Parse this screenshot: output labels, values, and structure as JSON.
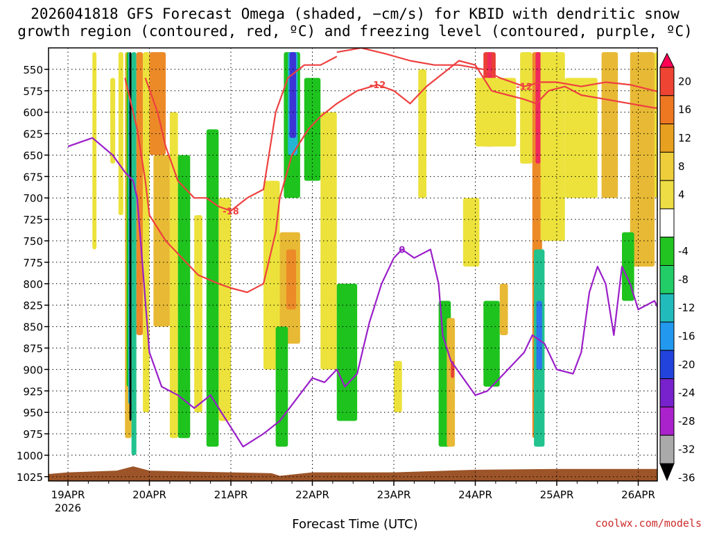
{
  "title_line1": "2026041818 GFS Forecast Omega (shaded, −cm/s) for KBID with dendritic snow",
  "title_line2": "growth region (contoured, red, ºC) and freezing level (contoured, purple, ºC)",
  "credit": "coolwx.com/models",
  "chart_data": {
    "type": "heatmap",
    "title": "2026041818 GFS Forecast Omega (shaded, −cm/s) for KBID with dendritic snow growth region (contoured, red, ºC) and freezing level (contoured, purple, ºC)",
    "xlabel": "Forecast Time (UTC)",
    "ylabel": "",
    "x_ticks": [
      "19APR",
      "20APR",
      "21APR",
      "22APR",
      "23APR",
      "24APR",
      "25APR",
      "26APR"
    ],
    "x_sub_label": "2026",
    "xlim_days": [
      0,
      7.55
    ],
    "y_ticks": [
      550,
      575,
      600,
      625,
      650,
      675,
      700,
      725,
      750,
      775,
      800,
      825,
      850,
      875,
      900,
      925,
      950,
      975,
      1000,
      1025
    ],
    "ylim_hpa": [
      525,
      1030
    ],
    "grid": true,
    "colorbar": {
      "ticks": [
        20,
        16,
        12,
        8,
        4,
        -4,
        -8,
        -12,
        -16,
        -20,
        -24,
        -28,
        -32,
        -36
      ],
      "colors": [
        "#ff0055",
        "#ee4433",
        "#ee7722",
        "#e8a020",
        "#eece3b",
        "#eedd44",
        "#ffffff",
        "#22c422",
        "#22cc66",
        "#22bbbb",
        "#2299ee",
        "#2244dd",
        "#7722cc",
        "#aa22cc",
        "#aaaaaa",
        "#000000"
      ]
    },
    "omega_regions": [
      {
        "x": [
          0.3,
          0.35
        ],
        "p": [
          530,
          760
        ],
        "value": 4
      },
      {
        "x": [
          0.52,
          0.58
        ],
        "p": [
          560,
          660
        ],
        "value": 4
      },
      {
        "x": [
          0.62,
          0.68
        ],
        "p": [
          530,
          720
        ],
        "value": 4
      },
      {
        "x": [
          0.7,
          0.78
        ],
        "p": [
          530,
          980
        ],
        "value": 8
      },
      {
        "x": [
          0.72,
          0.76
        ],
        "p": [
          530,
          920
        ],
        "value": -8
      },
      {
        "x": [
          0.74,
          0.77
        ],
        "p": [
          530,
          940
        ],
        "value": -16
      },
      {
        "x": [
          0.755,
          0.78
        ],
        "p": [
          530,
          960
        ],
        "value": -36
      },
      {
        "x": [
          0.78,
          0.84
        ],
        "p": [
          530,
          1000
        ],
        "value": -12
      },
      {
        "x": [
          0.84,
          0.92
        ],
        "p": [
          530,
          860
        ],
        "value": 12
      },
      {
        "x": [
          0.92,
          1.0
        ],
        "p": [
          530,
          950
        ],
        "value": 4
      },
      {
        "x": [
          1.0,
          1.2
        ],
        "p": [
          530,
          650
        ],
        "value": 12
      },
      {
        "x": [
          1.05,
          1.25
        ],
        "p": [
          650,
          850
        ],
        "value": 8
      },
      {
        "x": [
          1.25,
          1.35
        ],
        "p": [
          600,
          980
        ],
        "value": 4
      },
      {
        "x": [
          1.35,
          1.5
        ],
        "p": [
          650,
          980
        ],
        "value": -8
      },
      {
        "x": [
          1.55,
          1.65
        ],
        "p": [
          720,
          950
        ],
        "value": 4
      },
      {
        "x": [
          1.7,
          1.85
        ],
        "p": [
          620,
          990
        ],
        "value": -8
      },
      {
        "x": [
          1.85,
          2.0
        ],
        "p": [
          700,
          960
        ],
        "value": 4
      },
      {
        "x": [
          2.4,
          2.6
        ],
        "p": [
          680,
          900
        ],
        "value": 4
      },
      {
        "x": [
          2.6,
          2.85
        ],
        "p": [
          740,
          870
        ],
        "value": 8
      },
      {
        "x": [
          2.68,
          2.8
        ],
        "p": [
          760,
          830
        ],
        "value": 12
      },
      {
        "x": [
          2.65,
          2.85
        ],
        "p": [
          530,
          700
        ],
        "value": -8
      },
      {
        "x": [
          2.7,
          2.82
        ],
        "p": [
          530,
          650
        ],
        "value": -16
      },
      {
        "x": [
          2.72,
          2.8
        ],
        "p": [
          530,
          630
        ],
        "value": -24
      },
      {
        "x": [
          2.55,
          2.7
        ],
        "p": [
          850,
          990
        ],
        "value": -8
      },
      {
        "x": [
          2.9,
          3.1
        ],
        "p": [
          560,
          680
        ],
        "value": -8
      },
      {
        "x": [
          3.1,
          3.3
        ],
        "p": [
          600,
          900
        ],
        "value": 4
      },
      {
        "x": [
          3.3,
          3.55
        ],
        "p": [
          800,
          960
        ],
        "value": -8
      },
      {
        "x": [
          4.0,
          4.1
        ],
        "p": [
          890,
          950
        ],
        "value": 4
      },
      {
        "x": [
          4.3,
          4.4
        ],
        "p": [
          550,
          700
        ],
        "value": 4
      },
      {
        "x": [
          4.55,
          4.7
        ],
        "p": [
          820,
          990
        ],
        "value": -8
      },
      {
        "x": [
          4.65,
          4.75
        ],
        "p": [
          840,
          990
        ],
        "value": 8
      },
      {
        "x": [
          4.7,
          4.74
        ],
        "p": [
          890,
          910
        ],
        "value": 16
      },
      {
        "x": [
          4.85,
          5.05
        ],
        "p": [
          700,
          780
        ],
        "value": 4
      },
      {
        "x": [
          5.1,
          5.25
        ],
        "p": [
          530,
          640
        ],
        "value": 16
      },
      {
        "x": [
          5.15,
          5.2
        ],
        "p": [
          530,
          590
        ],
        "value": 20
      },
      {
        "x": [
          5.0,
          5.5
        ],
        "p": [
          560,
          640
        ],
        "value": 4
      },
      {
        "x": [
          5.1,
          5.3
        ],
        "p": [
          820,
          920
        ],
        "value": -8
      },
      {
        "x": [
          5.3,
          5.4
        ],
        "p": [
          800,
          860
        ],
        "value": 8
      },
      {
        "x": [
          5.55,
          5.7
        ],
        "p": [
          530,
          660
        ],
        "value": 4
      },
      {
        "x": [
          5.7,
          5.82
        ],
        "p": [
          530,
          980
        ],
        "value": 12
      },
      {
        "x": [
          5.74,
          5.8
        ],
        "p": [
          530,
          660
        ],
        "value": 20
      },
      {
        "x": [
          5.72,
          5.85
        ],
        "p": [
          760,
          990
        ],
        "value": -12
      },
      {
        "x": [
          5.75,
          5.82
        ],
        "p": [
          820,
          900
        ],
        "value": -20
      },
      {
        "x": [
          5.8,
          6.1
        ],
        "p": [
          530,
          750
        ],
        "value": 4
      },
      {
        "x": [
          6.1,
          6.5
        ],
        "p": [
          560,
          700
        ],
        "value": 4
      },
      {
        "x": [
          6.55,
          6.75
        ],
        "p": [
          530,
          700
        ],
        "value": 8
      },
      {
        "x": [
          6.9,
          7.2
        ],
        "p": [
          530,
          780
        ],
        "value": 8
      },
      {
        "x": [
          6.8,
          6.95
        ],
        "p": [
          740,
          820
        ],
        "value": -8
      },
      {
        "x": [
          7.2,
          7.4
        ],
        "p": [
          530,
          700
        ],
        "value": 4
      },
      {
        "x": [
          7.42,
          7.55
        ],
        "p": [
          530,
          640
        ],
        "value": -8
      }
    ],
    "dgz_contours": [
      {
        "label": "-18",
        "points": [
          [
            0.95,
            560
          ],
          [
            1.1,
            600
          ],
          [
            1.2,
            640
          ],
          [
            1.35,
            680
          ],
          [
            1.55,
            700
          ],
          [
            1.7,
            700
          ],
          [
            1.85,
            710
          ],
          [
            2.0,
            715
          ],
          [
            2.2,
            700
          ],
          [
            2.4,
            690
          ],
          [
            2.55,
            600
          ],
          [
            2.7,
            560
          ],
          [
            2.9,
            545
          ],
          [
            3.1,
            545
          ],
          [
            3.3,
            535
          ]
        ]
      },
      {
        "label": "-12",
        "points": [
          [
            0.7,
            560
          ],
          [
            0.85,
            620
          ],
          [
            0.95,
            680
          ],
          [
            1.0,
            720
          ],
          [
            1.2,
            750
          ],
          [
            1.4,
            770
          ],
          [
            1.6,
            790
          ],
          [
            1.85,
            800
          ],
          [
            2.0,
            805
          ],
          [
            2.2,
            810
          ],
          [
            2.4,
            800
          ],
          [
            2.55,
            740
          ],
          [
            2.6,
            700
          ],
          [
            2.75,
            650
          ],
          [
            2.95,
            620
          ],
          [
            3.1,
            605
          ],
          [
            3.3,
            590
          ],
          [
            3.55,
            575
          ],
          [
            3.8,
            568
          ],
          [
            4.0,
            575
          ],
          [
            4.2,
            590
          ],
          [
            4.4,
            570
          ],
          [
            4.6,
            555
          ],
          [
            4.8,
            540
          ],
          [
            5.0,
            545
          ],
          [
            5.2,
            575
          ],
          [
            5.4,
            580
          ],
          [
            5.6,
            585
          ],
          [
            5.75,
            590
          ],
          [
            5.9,
            575
          ],
          [
            6.1,
            570
          ],
          [
            6.3,
            580
          ],
          [
            6.6,
            585
          ],
          [
            6.9,
            590
          ],
          [
            7.2,
            595
          ],
          [
            7.5,
            595
          ]
        ]
      },
      {
        "label": "-12",
        "points": [
          [
            3.3,
            530
          ],
          [
            3.6,
            525
          ],
          [
            3.9,
            532
          ],
          [
            4.2,
            540
          ],
          [
            4.5,
            545
          ],
          [
            4.8,
            545
          ],
          [
            5.1,
            550
          ],
          [
            5.3,
            560
          ],
          [
            5.6,
            570
          ],
          [
            5.8,
            565
          ],
          [
            6.0,
            565
          ],
          [
            6.3,
            570
          ],
          [
            6.6,
            565
          ],
          [
            6.9,
            568
          ],
          [
            7.2,
            575
          ],
          [
            7.5,
            580
          ]
        ]
      }
    ],
    "freezing_level_contour": {
      "label": "0",
      "points": [
        [
          0.0,
          640
        ],
        [
          0.3,
          630
        ],
        [
          0.55,
          650
        ],
        [
          0.7,
          670
        ],
        [
          0.8,
          680
        ],
        [
          0.85,
          700
        ],
        [
          0.9,
          760
        ],
        [
          0.95,
          820
        ],
        [
          1.0,
          880
        ],
        [
          1.15,
          920
        ],
        [
          1.35,
          930
        ],
        [
          1.55,
          945
        ],
        [
          1.75,
          930
        ],
        [
          1.95,
          960
        ],
        [
          2.15,
          990
        ],
        [
          2.4,
          975
        ],
        [
          2.6,
          960
        ],
        [
          2.8,
          935
        ],
        [
          3.0,
          910
        ],
        [
          3.15,
          915
        ],
        [
          3.3,
          900
        ],
        [
          3.4,
          920
        ],
        [
          3.55,
          905
        ],
        [
          3.7,
          845
        ],
        [
          3.85,
          800
        ],
        [
          4.0,
          770
        ],
        [
          4.1,
          760
        ],
        [
          4.25,
          770
        ],
        [
          4.45,
          760
        ],
        [
          4.55,
          800
        ],
        [
          4.6,
          860
        ],
        [
          4.7,
          890
        ],
        [
          4.85,
          910
        ],
        [
          5.0,
          930
        ],
        [
          5.15,
          925
        ],
        [
          5.3,
          910
        ],
        [
          5.45,
          895
        ],
        [
          5.6,
          880
        ],
        [
          5.7,
          860
        ],
        [
          5.85,
          870
        ],
        [
          6.0,
          900
        ],
        [
          6.2,
          905
        ],
        [
          6.3,
          880
        ],
        [
          6.4,
          810
        ],
        [
          6.5,
          780
        ],
        [
          6.6,
          800
        ],
        [
          6.7,
          860
        ],
        [
          6.8,
          780
        ],
        [
          6.9,
          800
        ],
        [
          7.0,
          830
        ],
        [
          7.2,
          820
        ],
        [
          7.35,
          850
        ],
        [
          7.5,
          845
        ]
      ]
    }
  }
}
